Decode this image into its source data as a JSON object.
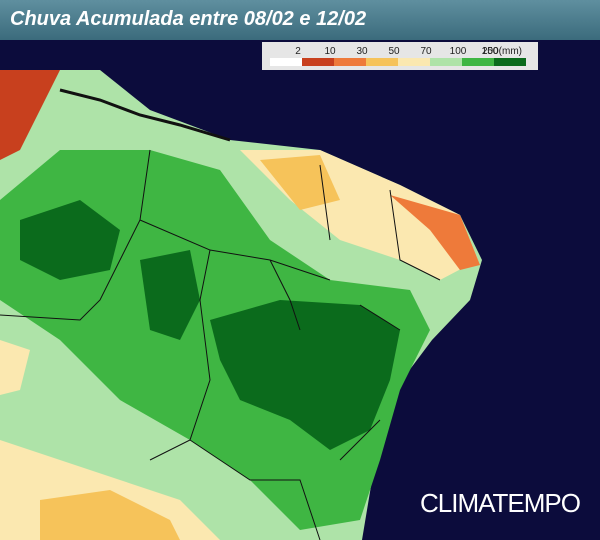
{
  "title": "Chuva Acumulada entre 08/02 e 12/02",
  "legend": {
    "items": [
      {
        "label": "2",
        "color": "#ffffff"
      },
      {
        "label": "10",
        "color": "#c8401e"
      },
      {
        "label": "30",
        "color": "#ee7a3a"
      },
      {
        "label": "50",
        "color": "#f6c35a"
      },
      {
        "label": "70",
        "color": "#fbe8b0"
      },
      {
        "label": "100",
        "color": "#aee3a8"
      },
      {
        "label": "150",
        "color": "#3fb643"
      },
      {
        "label": "200",
        "color": "#0b6b1c"
      }
    ],
    "unit": "(mm)"
  },
  "brand": "CLIMATEMPO"
}
